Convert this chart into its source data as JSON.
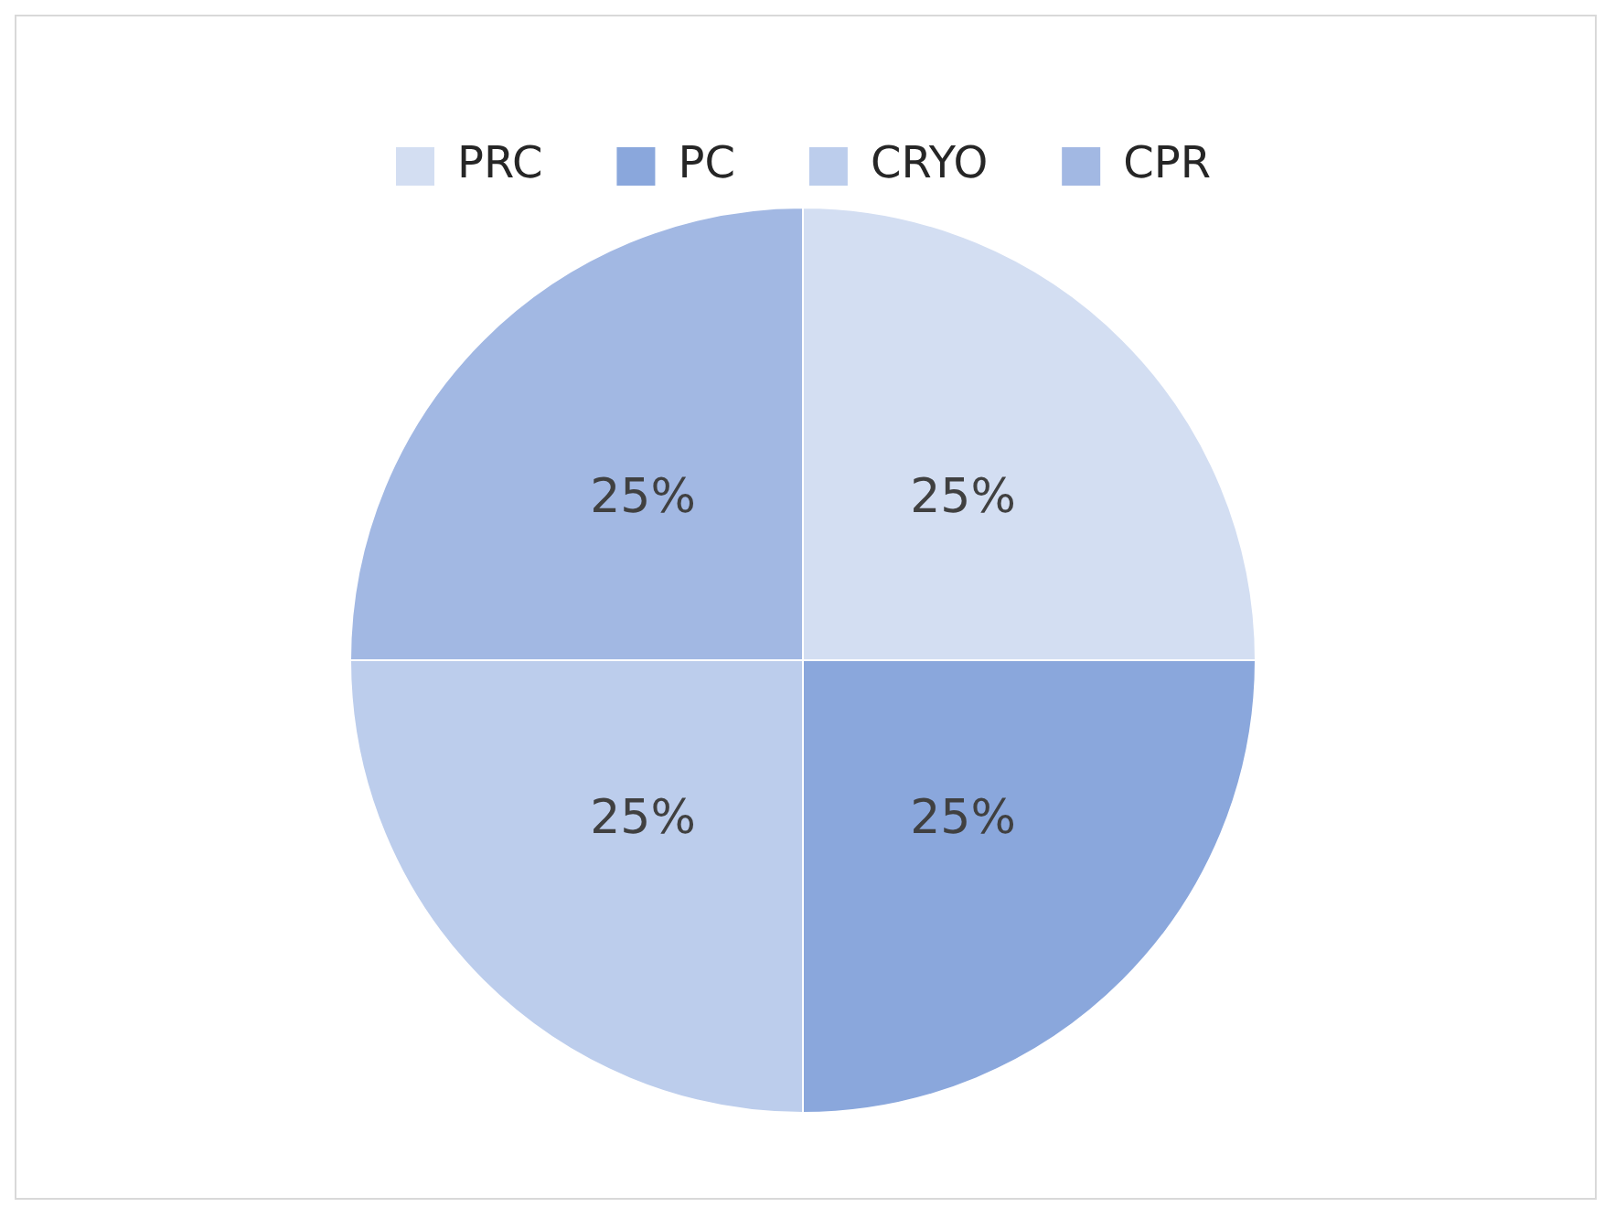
{
  "chart_data": {
    "type": "pie",
    "categories": [
      "PRC",
      "PC",
      "CRYO",
      "CPR"
    ],
    "values": [
      25,
      25,
      25,
      25
    ],
    "value_labels": [
      "25%",
      "25%",
      "25%",
      "25%"
    ],
    "colors": [
      "#d3def2",
      "#8aa7dc",
      "#bccdec",
      "#a2b8e3"
    ],
    "legend": "top"
  }
}
